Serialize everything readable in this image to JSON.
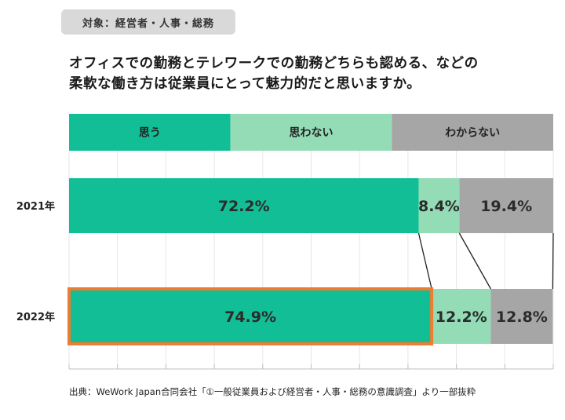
{
  "header": {
    "target_badge": "対象：経営者・人事・総務",
    "question_line1": "オフィスでの勤務とテレワークでの勤務どちらも認める、などの",
    "question_line2": "柔軟な働き方は従業員にとって魅力的だと思いますか。"
  },
  "chart_data": {
    "type": "bar",
    "orientation": "horizontal",
    "stacked": true,
    "percent_stacked": true,
    "categories": [
      "2021年",
      "2022年"
    ],
    "series": [
      {
        "name": "思う",
        "values": [
          72.2,
          74.9
        ],
        "labels": [
          "72.2%",
          "74.9%"
        ],
        "color": "#12be96"
      },
      {
        "name": "思わない",
        "values": [
          8.4,
          12.2
        ],
        "labels": [
          "8.4%",
          "12.2%"
        ],
        "color": "#93dcb6"
      },
      {
        "name": "わからない",
        "values": [
          19.4,
          12.8
        ],
        "labels": [
          "19.4%",
          "12.8%"
        ],
        "color": "#a6a6a6"
      }
    ],
    "xlim": [
      0,
      100
    ],
    "grid": true,
    "legend": "top",
    "highlight": {
      "category": "2022年",
      "series": "思う",
      "color": "#ed7d31"
    }
  },
  "footer": {
    "source": "出典：WeWork Japan合同会社「①一般従業員および経営者・人事・総務の意識調査」より一部抜粋"
  }
}
